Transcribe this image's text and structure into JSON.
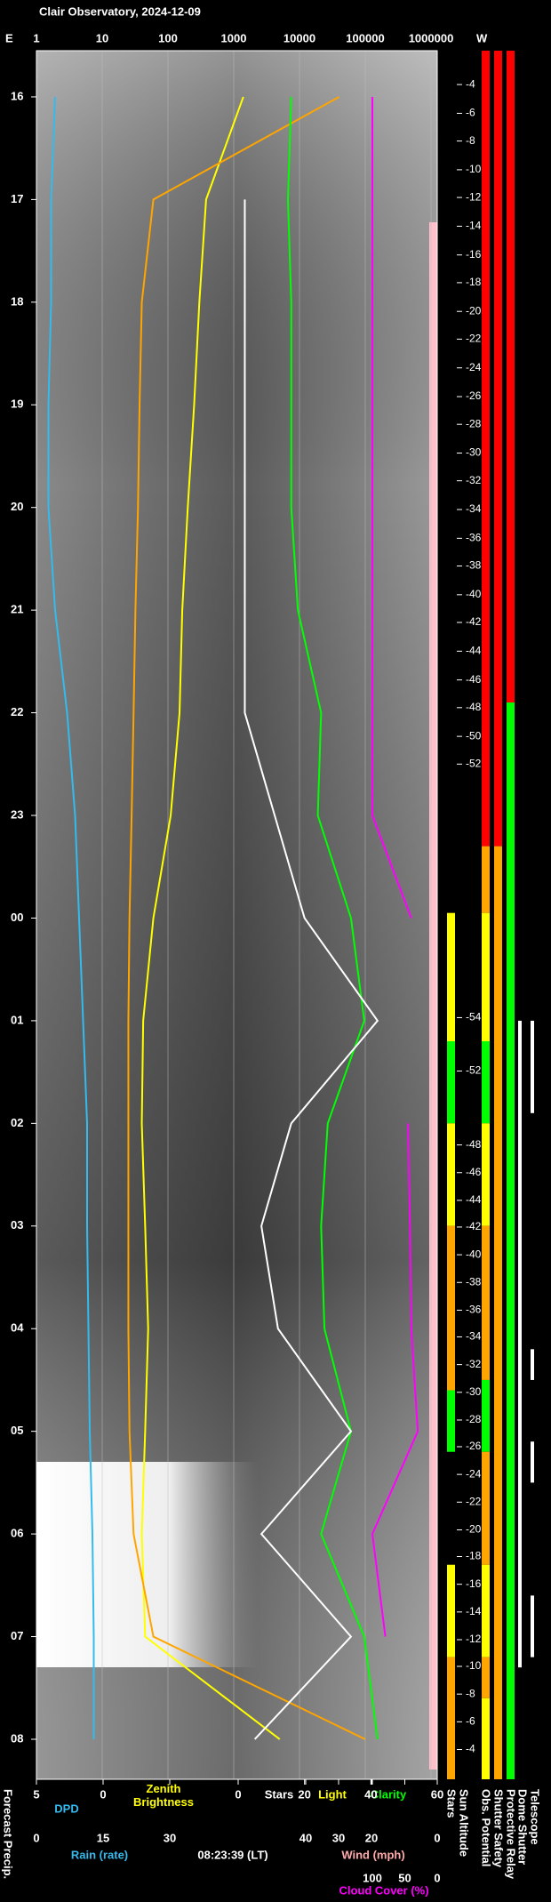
{
  "chart_data": {
    "type": "line",
    "title": "Clair Observatory, 2024-12-09",
    "east": "E",
    "west": "W",
    "timestamp": "08:23:39 (LT)",
    "forecast_label": "Forecast Precip.",
    "ylim": [
      15.55,
      32.39
    ],
    "yticks": [
      16,
      17,
      18,
      19,
      20,
      21,
      22,
      23,
      {
        "value": 24,
        "label": "00"
      },
      {
        "value": 25,
        "label": "01"
      },
      {
        "value": 26,
        "label": "02"
      },
      {
        "value": 27,
        "label": "03"
      },
      {
        "value": 28,
        "label": "04"
      },
      {
        "value": 29,
        "label": "05"
      },
      {
        "value": 30,
        "label": "06"
      },
      {
        "value": 31,
        "label": "07"
      },
      {
        "value": 32,
        "label": "08"
      }
    ],
    "grid": true,
    "axes": {
      "log": {
        "xlim": [
          1,
          1000000
        ],
        "xticks": [
          1,
          10,
          100,
          1000,
          10000,
          100000,
          1000000
        ],
        "log": true
      },
      "dpd": {
        "xlim": [
          5,
          0
        ],
        "xticks": [
          5,
          0
        ]
      },
      "rain": {
        "xlim": [
          0,
          30
        ],
        "xticks": [
          0,
          15,
          30
        ],
        "label": "Rain (rate)"
      },
      "clarity": {
        "xlim": [
          0,
          60
        ],
        "xticks": [
          0,
          20,
          40,
          60
        ],
        "labels": [
          "Light"
        ]
      },
      "wind": {
        "xlim": [
          40,
          0
        ],
        "xticks": [
          40,
          30,
          20,
          0
        ],
        "label": "Wind (mph)"
      },
      "cloud": {
        "xlim": [
          100,
          0
        ],
        "xticks": [
          100,
          50,
          0
        ],
        "label": "Cloud Cover (%)"
      }
    },
    "x": [
      16,
      17,
      18,
      19,
      20,
      21,
      22,
      23,
      24,
      25,
      26,
      27,
      28,
      29,
      30,
      31,
      32
    ],
    "series": [
      {
        "name": "Zenith Brightness",
        "axis": "log",
        "color": "#ffff00",
        "values": [
          1400,
          380,
          300,
          250,
          200,
          165,
          150,
          110,
          60,
          42,
          40,
          45,
          50,
          45,
          40,
          45,
          5000
        ]
      },
      {
        "axis": "log",
        "color": "#ffa500",
        "values": [
          40000,
          60,
          40,
          37,
          35,
          32,
          30,
          28,
          26,
          25,
          25,
          25,
          25,
          26,
          30,
          60,
          100000
        ]
      },
      {
        "name": "Clarity",
        "axis": "clarity",
        "color": "#00ff00",
        "values": [
          16,
          15,
          16,
          16,
          16,
          18,
          25,
          24,
          34,
          38,
          27,
          25,
          26,
          34,
          25,
          38,
          42
        ]
      },
      {
        "name": "Stars",
        "axis": "clarity",
        "color": "#ffffff",
        "values": [
          null,
          2,
          2,
          2,
          2,
          2,
          2,
          11,
          20,
          42,
          16,
          7,
          12,
          34,
          7,
          34,
          5
        ]
      },
      {
        "axis": "cloud",
        "color": "#ff00ff",
        "values": [
          100,
          100,
          100,
          100,
          100,
          100,
          100,
          100,
          40,
          null,
          45,
          42,
          40,
          30,
          100,
          80,
          null
        ]
      },
      {
        "name": "DPD",
        "axis": "dpd",
        "color": "#33bbee",
        "values": [
          3.6,
          3.9,
          3.9,
          4.1,
          4.1,
          3.6,
          2.7,
          2.1,
          1.8,
          1.5,
          1.2,
          1.2,
          1.1,
          1.0,
          0.8,
          0.7,
          0.7
        ]
      }
    ],
    "sun_altitude": {
      "name": "Sun Altitude",
      "x": [
        15.88,
        16.16,
        16.43,
        16.71,
        16.98,
        17.26,
        17.54,
        17.81,
        18.09,
        18.36,
        18.64,
        18.92,
        19.19,
        19.47,
        19.74,
        20.02,
        20.3,
        20.57,
        20.85,
        21.12,
        21.4,
        21.68,
        21.95,
        22.23,
        22.5,
        24.97,
        25.49,
        26.21,
        26.48,
        26.75,
        27.01,
        27.28,
        27.55,
        27.82,
        28.08,
        28.35,
        28.62,
        28.89,
        29.15,
        29.42,
        29.69,
        29.96,
        30.22,
        30.49,
        30.76,
        31.03,
        31.29,
        31.56,
        31.83,
        32.1
      ],
      "values": [
        -4,
        -6,
        -8,
        -10,
        -12,
        -14,
        -16,
        -18,
        -20,
        -22,
        -24,
        -26,
        -28,
        -30,
        -32,
        -34,
        -36,
        -38,
        -40,
        -42,
        -44,
        -46,
        -48,
        -50,
        -52,
        -54,
        -52,
        -48,
        -46,
        -44,
        -42,
        -40,
        -38,
        -36,
        -34,
        -32,
        -30,
        -28,
        -26,
        -24,
        -22,
        -20,
        -18,
        -16,
        -14,
        -12,
        -10,
        -8,
        -6,
        -4
      ]
    },
    "status": [
      {
        "name": "Stars",
        "segments": [
          {
            "from": 23.95,
            "to": 25.2,
            "color": "#ffff00"
          },
          {
            "from": 25.2,
            "to": 26.0,
            "color": "#00ff00"
          },
          {
            "from": 26.0,
            "to": 27.0,
            "color": "#ffff00"
          },
          {
            "from": 27.0,
            "to": 28.6,
            "color": "#ffa500"
          },
          {
            "from": 28.6,
            "to": 29.2,
            "color": "#00ff00"
          },
          {
            "from": 30.3,
            "to": 31.2,
            "color": "#ffff00"
          },
          {
            "from": 31.2,
            "to": 32.39,
            "color": "#ffa500"
          }
        ]
      },
      {
        "name": "Obs. Potential",
        "segments": [
          {
            "from": 15.55,
            "to": 23.3,
            "color": "#ff0000"
          },
          {
            "from": 23.3,
            "to": 23.95,
            "color": "#ffa500"
          },
          {
            "from": 23.95,
            "to": 25.2,
            "color": "#ffff00"
          },
          {
            "from": 25.2,
            "to": 26.0,
            "color": "#00ff00"
          },
          {
            "from": 26.0,
            "to": 27.0,
            "color": "#ffff00"
          },
          {
            "from": 27.0,
            "to": 28.5,
            "color": "#ffa500"
          },
          {
            "from": 28.5,
            "to": 29.2,
            "color": "#00ff00"
          },
          {
            "from": 29.2,
            "to": 30.3,
            "color": "#ffa500"
          },
          {
            "from": 30.3,
            "to": 31.2,
            "color": "#ffff00"
          },
          {
            "from": 31.2,
            "to": 31.6,
            "color": "#ffa500"
          },
          {
            "from": 31.6,
            "to": 32.39,
            "color": "#ffff00"
          }
        ]
      },
      {
        "name": "Shutter Safety",
        "segments": [
          {
            "from": 15.55,
            "to": 23.3,
            "color": "#ff0000"
          },
          {
            "from": 23.3,
            "to": 32.39,
            "color": "#ffa500"
          }
        ]
      },
      {
        "name": "Protective Relay",
        "segments": [
          {
            "from": 15.55,
            "to": 21.9,
            "color": "#ff0000"
          },
          {
            "from": 21.9,
            "to": 32.39,
            "color": "#00ff00"
          }
        ]
      },
      {
        "name": "Dome Shutter",
        "segments": [
          {
            "from": 25.0,
            "to": 31.3,
            "color": "#ffffff"
          }
        ]
      },
      {
        "name": "Telescope",
        "segments": [
          {
            "from": 25.0,
            "to": 25.9,
            "color": "#ffffff"
          },
          {
            "from": 28.2,
            "to": 28.5,
            "color": "#ffffff"
          },
          {
            "from": 29.1,
            "to": 29.5,
            "color": "#ffffff"
          },
          {
            "from": 30.6,
            "to": 31.2,
            "color": "#ffffff"
          }
        ]
      }
    ]
  }
}
